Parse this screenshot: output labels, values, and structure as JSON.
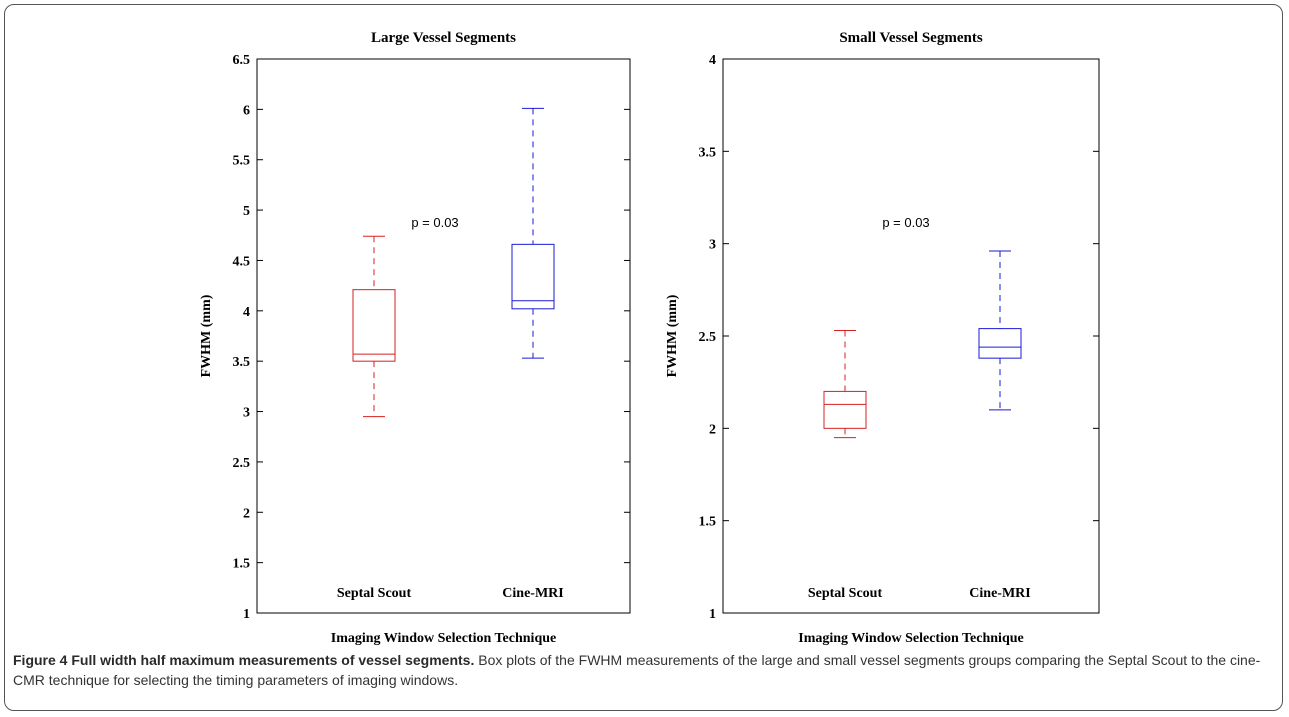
{
  "chart_data": [
    {
      "type": "boxplot",
      "title": "Large Vessel Segments",
      "xlabel": "Imaging Window Selection Technique",
      "ylabel": "FWHM (mm)",
      "ylim": [
        1,
        6.5
      ],
      "yticks": [
        "1",
        "1.5",
        "2",
        "2.5",
        "3",
        "3.5",
        "4",
        "4.5",
        "5",
        "5.5",
        "6",
        "6.5"
      ],
      "categories": [
        "Septal Scout",
        "Cine-MRI"
      ],
      "colors": [
        "#d62020",
        "#1a1ad6"
      ],
      "boxes": [
        {
          "min": 2.95,
          "q1": 3.5,
          "median": 3.57,
          "q3": 4.21,
          "max": 4.74
        },
        {
          "min": 3.53,
          "q1": 4.02,
          "median": 4.1,
          "q3": 4.66,
          "max": 6.01
        }
      ],
      "annotation": "p = 0.03"
    },
    {
      "type": "boxplot",
      "title": "Small Vessel Segments",
      "xlabel": "Imaging Window Selection Technique",
      "ylabel": "FWHM (mm)",
      "ylim": [
        1,
        4
      ],
      "yticks": [
        "1",
        "1.5",
        "2",
        "2.5",
        "3",
        "3.5",
        "4"
      ],
      "categories": [
        "Septal Scout",
        "Cine-MRI"
      ],
      "colors": [
        "#d62020",
        "#1a1ad6"
      ],
      "boxes": [
        {
          "min": 1.95,
          "q1": 2.0,
          "median": 2.13,
          "q3": 2.2,
          "max": 2.53
        },
        {
          "min": 2.1,
          "q1": 2.38,
          "median": 2.44,
          "q3": 2.54,
          "max": 2.96
        }
      ],
      "annotation": "p = 0.03"
    }
  ],
  "caption": {
    "bold": "Figure 4 Full width half maximum measurements of vessel segments.",
    "text": " Box plots of the FWHM measurements of the large and small vessel segments groups comparing the Septal Scout to the cine-CMR technique for selecting the timing parameters of imaging windows."
  }
}
